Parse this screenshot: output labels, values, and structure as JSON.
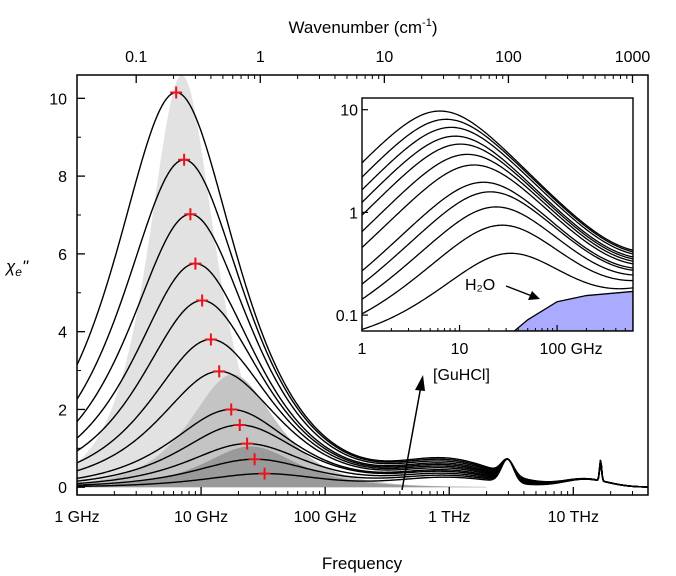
{
  "chart_data": [
    {
      "type": "line",
      "xlabel": "Frequency",
      "ylabel": "χe\"",
      "top_xlabel": "Wavenumber (cm-1)",
      "x_scale": "log",
      "xlim_ghz": [
        1,
        40000
      ],
      "ylim": [
        -0.2,
        10.6
      ],
      "x_tick_labels": [
        "1 GHz",
        "10 GHz",
        "100 GHz",
        "1 THz",
        "10 THz"
      ],
      "x_tick_values_ghz": [
        1,
        10,
        100,
        1000,
        10000
      ],
      "y_ticks": [
        0,
        2,
        4,
        6,
        8,
        10
      ],
      "top_tick_labels": [
        "0.1",
        "1",
        "10",
        "100",
        "1000"
      ],
      "top_tick_values_ghz": [
        3,
        30,
        300,
        3000,
        30000
      ],
      "curve_peaks": [
        {
          "f_ghz": 6.3,
          "value": 10.15
        },
        {
          "f_ghz": 7.3,
          "value": 8.42
        },
        {
          "f_ghz": 8.2,
          "value": 7.02
        },
        {
          "f_ghz": 9.0,
          "value": 5.75
        },
        {
          "f_ghz": 10.2,
          "value": 4.8
        },
        {
          "f_ghz": 12.0,
          "value": 3.8
        },
        {
          "f_ghz": 14.0,
          "value": 2.98
        },
        {
          "f_ghz": 17.5,
          "value": 2.0
        },
        {
          "f_ghz": 20.5,
          "value": 1.6
        },
        {
          "f_ghz": 23.5,
          "value": 1.12
        },
        {
          "f_ghz": 27.0,
          "value": 0.72
        },
        {
          "f_ghz": 32.5,
          "value": 0.35
        }
      ],
      "marker": "+",
      "marker_color": "#e8141b",
      "annotation": "[GuHCl]",
      "fill_colors": [
        "#e2e2e2",
        "#c4c4c4",
        "#9a9a9a"
      ]
    },
    {
      "type": "line",
      "inset": true,
      "x_scale": "log",
      "y_scale": "log",
      "xlim_ghz": [
        1,
        600
      ],
      "ylim": [
        0.07,
        13
      ],
      "x_tick_labels": [
        "1",
        "10",
        "100 GHz"
      ],
      "x_tick_values_ghz": [
        1,
        10,
        100
      ],
      "y_tick_labels": [
        "0.1",
        "1",
        "10"
      ],
      "y_tick_values": [
        0.1,
        1,
        10
      ],
      "curve_count": 12,
      "water_label": "H₂O",
      "water_fill": "#aaaaff",
      "water_curve": [
        {
          "f_ghz": 30,
          "value": 0.06
        },
        {
          "f_ghz": 50,
          "value": 0.09
        },
        {
          "f_ghz": 100,
          "value": 0.135
        },
        {
          "f_ghz": 200,
          "value": 0.155
        },
        {
          "f_ghz": 600,
          "value": 0.17
        }
      ]
    }
  ]
}
